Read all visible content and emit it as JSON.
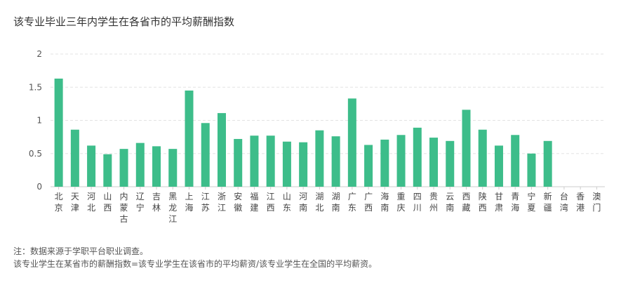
{
  "chart_data": {
    "type": "bar",
    "title": "该专业毕业三年内学生在各省市的平均薪酬指数",
    "ylim": [
      0,
      2
    ],
    "yticks": [
      "0",
      "0.5",
      "1",
      "1.5",
      "2"
    ],
    "grid": true,
    "color": "#3dbd8a",
    "categories": [
      "北京",
      "天津",
      "河北",
      "山西",
      "内蒙古",
      "辽宁",
      "吉林",
      "黑龙江",
      "上海",
      "江苏",
      "浙江",
      "安徽",
      "福建",
      "江西",
      "山东",
      "河南",
      "湖北",
      "湖南",
      "广东",
      "广西",
      "海南",
      "重庆",
      "四川",
      "贵州",
      "云南",
      "西藏",
      "陕西",
      "甘肃",
      "青海",
      "宁夏",
      "新疆",
      "台湾",
      "香港",
      "澳门"
    ],
    "values": [
      1.63,
      0.86,
      0.62,
      0.49,
      0.57,
      0.66,
      0.61,
      0.57,
      1.45,
      0.96,
      1.11,
      0.72,
      0.77,
      0.77,
      0.68,
      0.67,
      0.85,
      0.76,
      1.33,
      0.63,
      0.71,
      0.78,
      0.89,
      0.74,
      0.69,
      1.16,
      0.86,
      0.62,
      0.78,
      0.5,
      0.69,
      0,
      0,
      0
    ]
  },
  "notes": {
    "line1": "注：数据来源于学职平台职业调查。",
    "line2": "该专业学生在某省市的薪酬指数=该专业学生在该省市的平均薪资/该专业学生在全国的平均薪资。"
  }
}
